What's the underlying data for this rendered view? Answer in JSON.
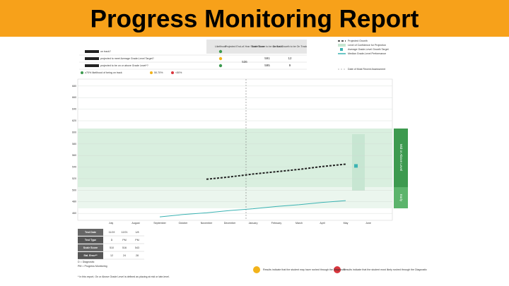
{
  "title": "Progress Monitoring Report",
  "header_table": {
    "columns": [
      "Likelihood",
      "Projected End-of-Year Scale Score",
      "Scale Score to be On Track",
      "Annual Growth to be On Track"
    ],
    "rows": [
      {
        "question": "on track?"
      },
      {
        "question": "projected to meet Average Grade-Level Target?",
        "projected": "536",
        "score": "591",
        "growth": "12"
      },
      {
        "question": "projected to be on or above Grade Level*?",
        "score": "595",
        "growth": "9"
      }
    ]
  },
  "likelihood_key": [
    "≥70% likelihood of being on track",
    "50-70%",
    "<50%"
  ],
  "chart_data": {
    "type": "line",
    "x": [
      "July",
      "August",
      "September",
      "October",
      "November",
      "December",
      "January",
      "February",
      "March",
      "April",
      "May",
      "June"
    ],
    "series": [
      {
        "name": "Projected Growth",
        "color": "#222222",
        "dash": true,
        "values": [
          null,
          null,
          null,
          null,
          519,
          523,
          528,
          532,
          536,
          541,
          545,
          null
        ]
      },
      {
        "name": "Median Grade-Level Performance",
        "color": "#3bb3b3",
        "values": [
          null,
          null,
          454,
          458,
          461,
          465,
          468,
          472,
          475,
          479,
          482,
          null
        ]
      },
      {
        "name": "Average Grade-Level Growth Target",
        "color": "#3bb3b3",
        "marker": "square",
        "values": [
          null,
          null,
          null,
          null,
          null,
          null,
          null,
          null,
          null,
          null,
          542,
          null
        ]
      }
    ],
    "legend_extra": [
      "Level of Confidence for Projection",
      "Date of Most Recent Assessment"
    ],
    "band_labels": [
      "Mid or Above Level",
      "Early"
    ],
    "ylim": [
      448,
      692
    ],
    "yticks": [
      460,
      480,
      500,
      520,
      540,
      560,
      580,
      600,
      620,
      640,
      660,
      680
    ],
    "grid": true
  },
  "test_table": {
    "rows": [
      [
        "Test Date",
        "11/19",
        "12/21",
        "1/8"
      ],
      [
        "Test Type",
        "D",
        "PM",
        "PM"
      ],
      [
        "Scale Score",
        "510",
        "516",
        "543"
      ],
      [
        "Std. Error**",
        "12",
        "24",
        "28"
      ]
    ]
  },
  "notes": [
    "D = Diagnostic",
    "PM = Progress Monitoring",
    "* In this report, On or Above Grade Level is defined as placing at mid or late-level."
  ],
  "callouts": [
    "Results indicate that the student may have rushed through the Diagnostic",
    "Results indicate that the student most likely rushed through the Diagnostic"
  ]
}
